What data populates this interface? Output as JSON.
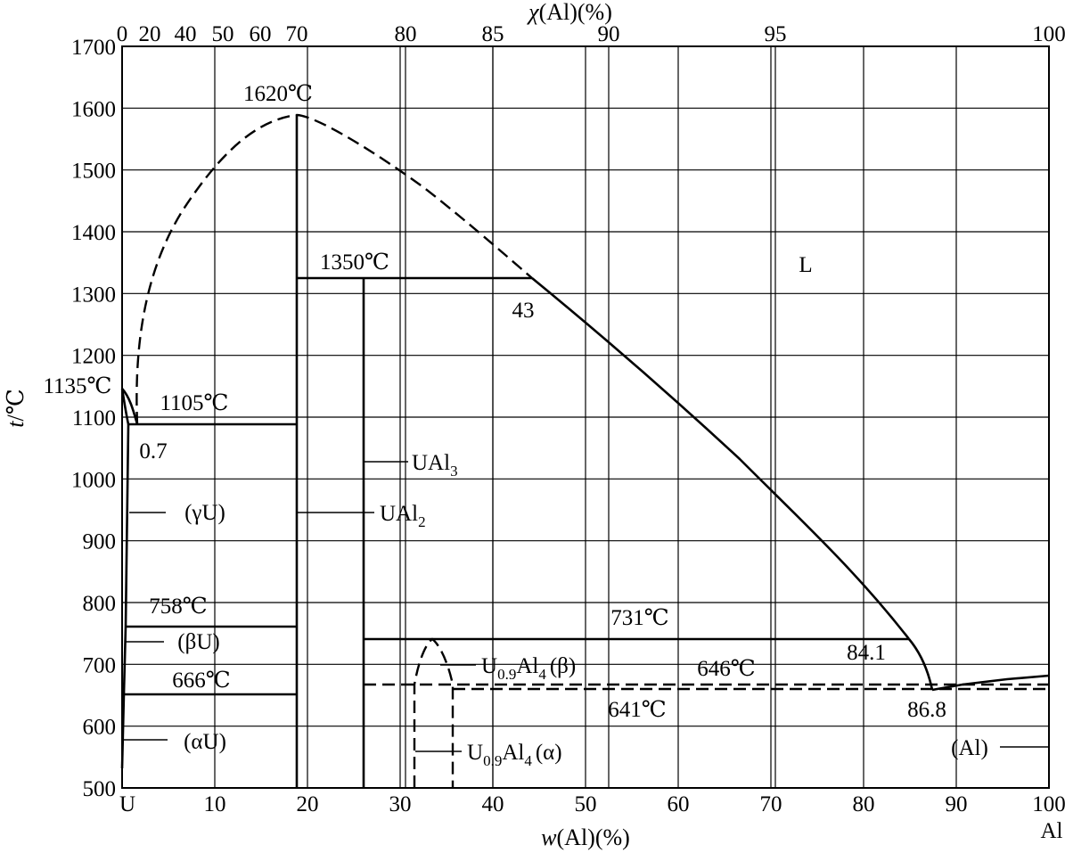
{
  "axes": {
    "x_bottom_title_italic": "w",
    "x_bottom_title_rest": "(Al)(%)",
    "x_top_title_italic": "χ",
    "x_top_title_rest": "(Al)(%)",
    "y_title_italic": "t",
    "y_title_rest": "/℃",
    "x_bottom_ticks": [
      {
        "label": "10",
        "w": 10
      },
      {
        "label": "20",
        "w": 20
      },
      {
        "label": "30",
        "w": 30
      },
      {
        "label": "40",
        "w": 40
      },
      {
        "label": "50",
        "w": 50
      },
      {
        "label": "60",
        "w": 60
      },
      {
        "label": "70",
        "w": 70
      },
      {
        "label": "80",
        "w": 80
      },
      {
        "label": "90",
        "w": 90
      },
      {
        "label": "100",
        "w": 100
      }
    ],
    "x_top_ticks": [
      {
        "label": "0",
        "x": 0
      },
      {
        "label": "20",
        "x": 20
      },
      {
        "label": "40",
        "x": 40
      },
      {
        "label": "50",
        "x": 50
      },
      {
        "label": "60",
        "x": 60
      },
      {
        "label": "70",
        "x": 70
      },
      {
        "label": "80",
        "x": 80
      },
      {
        "label": "85",
        "x": 85
      },
      {
        "label": "90",
        "x": 90
      },
      {
        "label": "95",
        "x": 95
      },
      {
        "label": "100",
        "x": 100
      }
    ],
    "y_ticks": [
      {
        "label": "500",
        "t": 500
      },
      {
        "label": "600",
        "t": 600
      },
      {
        "label": "700",
        "t": 700
      },
      {
        "label": "800",
        "t": 800
      },
      {
        "label": "900",
        "t": 900
      },
      {
        "label": "1000",
        "t": 1000
      },
      {
        "label": "1100",
        "t": 1100
      },
      {
        "label": "1200",
        "t": 1200
      },
      {
        "label": "1300",
        "t": 1300
      },
      {
        "label": "1400",
        "t": 1400
      },
      {
        "label": "1500",
        "t": 1500
      },
      {
        "label": "1600",
        "t": 1600
      },
      {
        "label": "1700",
        "t": 1700
      }
    ],
    "x_left_end_label": "U",
    "x_right_end_label": "Al"
  },
  "labels": {
    "t1620": "1620℃",
    "t1350": "1350℃",
    "t1135": "1135℃",
    "t1105": "1105℃",
    "t758": "758℃",
    "t666": "666℃",
    "t731": "731℃",
    "t646": "646℃",
    "t641": "641℃",
    "c43": "43",
    "c07": "0.7",
    "c841": "84.1",
    "c868": "86.8",
    "phase_L": "L",
    "phase_gammaU": "(γU)",
    "phase_betaU": "(βU)",
    "phase_alphaU": "(αU)",
    "phase_Al": "(Al)",
    "ual2_main": "UAl",
    "ual2_sub": "2",
    "ual3_main": "UAl",
    "ual3_sub": "3",
    "u09al4_beta_U": "U",
    "u09al4_beta_sub1": "0.9",
    "u09al4_beta_Al": "Al",
    "u09al4_beta_sub2": "4",
    "u09al4_beta_phase": "(β)",
    "u09al4_alpha_U": "U",
    "u09al4_alpha_sub1": "0.9",
    "u09al4_alpha_Al": "Al",
    "u09al4_alpha_sub2": "4",
    "u09al4_alpha_phase": "(α)"
  },
  "chart_data": {
    "type": "phase-diagram",
    "system": "U–Al",
    "x_range_w_percent": [
      0,
      100
    ],
    "y_range_celsius": [
      500,
      1700
    ],
    "invariant_temperatures_celsius": {
      "UAl2_congruent_melting": 1620,
      "UAl3_peritectic": 1350,
      "U_melting": 1135,
      "eutectic_U_UAl2": 1105,
      "beta_gamma_U": 758,
      "alpha_beta_U": 666,
      "U09Al4_peritectic": 731,
      "U09Al4_beta_alpha": 646,
      "eutectic_Al": 641
    },
    "compositions_w_percent": {
      "eutectic_U_side": 0.7,
      "peritectic_1350": 43,
      "peritectic_731": 84.1,
      "eutectic_Al": 86.8
    },
    "phases": [
      "L",
      "(γU)",
      "(βU)",
      "(αU)",
      "UAl2",
      "UAl3",
      "U0.9Al4(β)",
      "U0.9Al4(α)",
      "(Al)"
    ]
  }
}
